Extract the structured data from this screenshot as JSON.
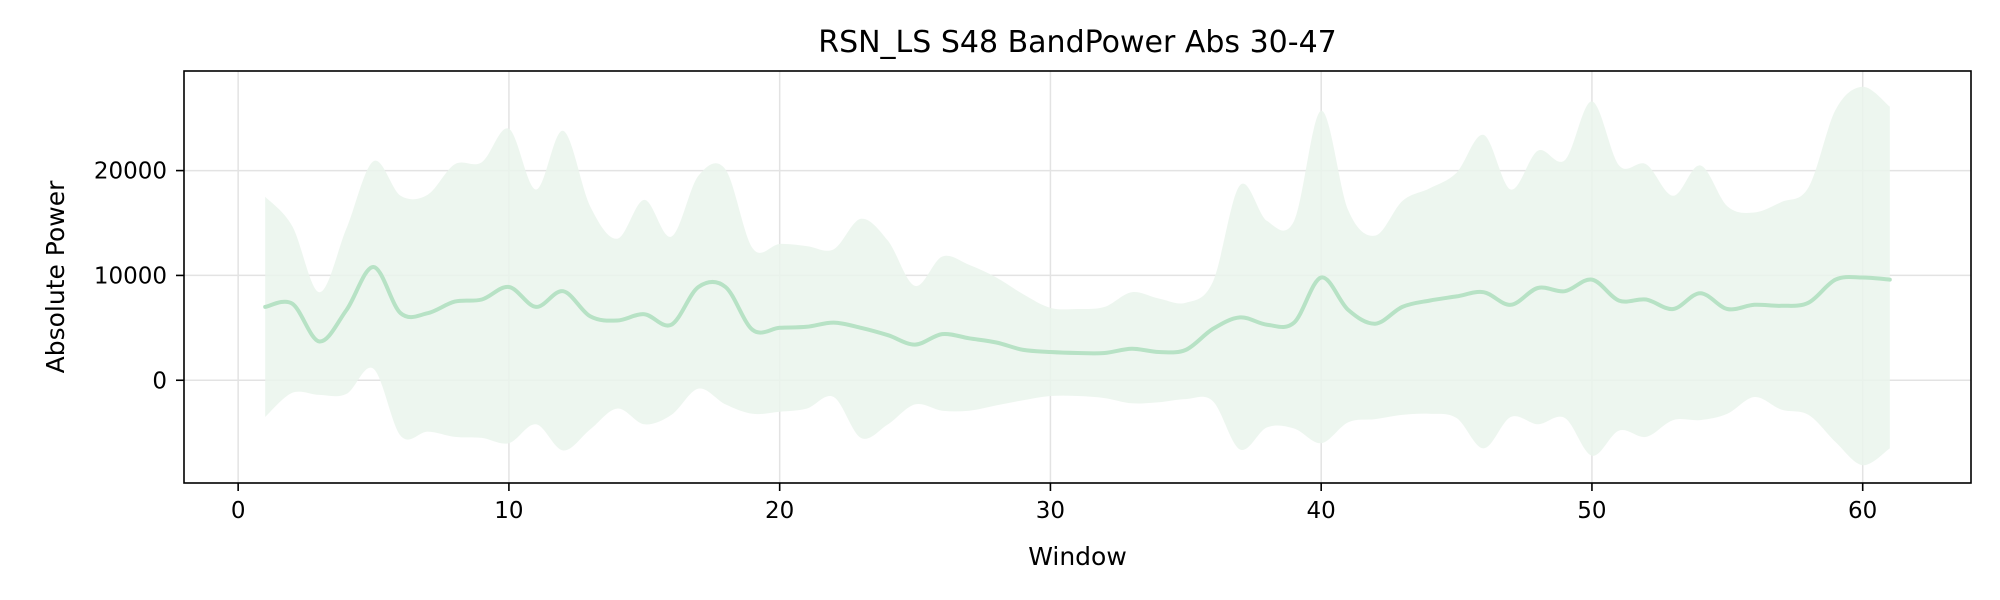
{
  "chart_data": {
    "type": "line",
    "title": "RSN_LS S48 BandPower Abs 30-47",
    "xlabel": "Window",
    "ylabel": "Absolute Power",
    "xlim": [
      -2,
      64
    ],
    "ylim": [
      -9800,
      29500
    ],
    "xticks": [
      0,
      10,
      20,
      30,
      40,
      50,
      60
    ],
    "yticks": [
      0,
      10000,
      20000
    ],
    "grid": true,
    "colors": {
      "line": "#b7e2c5",
      "band": "#eaf5ec",
      "grid": "#e3e3e3"
    },
    "series": [
      {
        "x": [
          1,
          2,
          3,
          4,
          5,
          6,
          7,
          8,
          9,
          10,
          11,
          12,
          13,
          14,
          15,
          16,
          17,
          18,
          19,
          20,
          21,
          22,
          23,
          24,
          25,
          26,
          27,
          28,
          29,
          30,
          31,
          32,
          33,
          34,
          35,
          36,
          37,
          38,
          39,
          40,
          41,
          42,
          43,
          44,
          45,
          46,
          47,
          48,
          49,
          50,
          51,
          52,
          53,
          54,
          55,
          56,
          57,
          58,
          59,
          60,
          61
        ],
        "y": [
          7000,
          7300,
          3700,
          6700,
          10800,
          6400,
          6400,
          7500,
          7700,
          8900,
          7000,
          8500,
          6100,
          5700,
          6300,
          5300,
          8900,
          8900,
          4800,
          5000,
          5100,
          5500,
          5000,
          4300,
          3400,
          4400,
          4000,
          3600,
          2900,
          2700,
          2600,
          2600,
          3000,
          2700,
          2900,
          4900,
          6000,
          5300,
          5500,
          9800,
          6700,
          5400,
          7000,
          7600,
          8000,
          8400,
          7200,
          8800,
          8500,
          9600,
          7600,
          7700,
          6800,
          8300,
          6800,
          7200,
          7100,
          7400,
          9600,
          9800,
          9600
        ],
        "lower": [
          -3500,
          -1200,
          -1400,
          -1300,
          1100,
          -5300,
          -4900,
          -5400,
          -5500,
          -6000,
          -4200,
          -6700,
          -4700,
          -2700,
          -4200,
          -3300,
          -800,
          -2300,
          -3200,
          -3000,
          -2700,
          -1600,
          -5500,
          -4200,
          -2300,
          -2900,
          -2900,
          -2400,
          -1900,
          -1500,
          -1500,
          -1700,
          -2200,
          -2100,
          -1800,
          -2000,
          -6600,
          -4500,
          -4600,
          -6000,
          -4000,
          -3700,
          -3300,
          -3200,
          -3600,
          -6500,
          -3500,
          -4200,
          -3600,
          -7200,
          -4800,
          -5400,
          -3800,
          -3800,
          -3200,
          -1600,
          -2800,
          -3300,
          -5900,
          -8100,
          -6500
        ],
        "upper": [
          17500,
          14700,
          8400,
          14500,
          20900,
          17600,
          17700,
          20600,
          20800,
          24000,
          18200,
          23800,
          16600,
          13500,
          17200,
          13700,
          19500,
          20100,
          12600,
          13000,
          12800,
          12500,
          15400,
          13300,
          9000,
          11800,
          11000,
          9800,
          8200,
          6900,
          6800,
          7000,
          8400,
          7800,
          7400,
          9400,
          18600,
          15200,
          15200,
          25700,
          16200,
          13800,
          17100,
          18300,
          19800,
          23400,
          18200,
          21900,
          21000,
          26600,
          20500,
          20600,
          17600,
          20500,
          16600,
          16000,
          17000,
          18400,
          25800,
          28000,
          26100
        ]
      }
    ]
  }
}
